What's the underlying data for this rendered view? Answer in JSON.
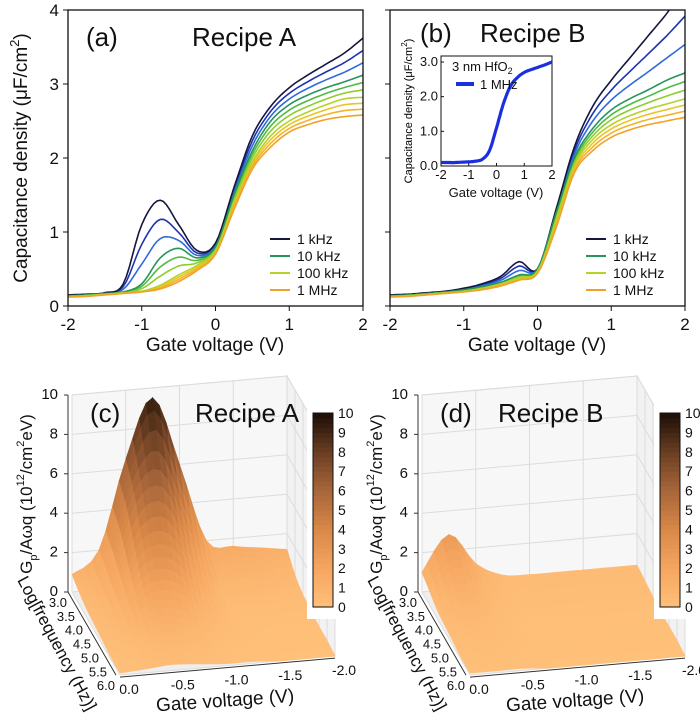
{
  "chart_data": [
    {
      "panel": "(a)",
      "title": "Recipe A",
      "type": "line",
      "xlabel": "Gate voltage (V)",
      "ylabel_parts": [
        "Capacitance density (μF/cm",
        "2",
        ")"
      ],
      "xlim": [
        -2,
        2
      ],
      "ylim": [
        0,
        4
      ],
      "xticks": [
        "-2",
        "-1",
        "0",
        "1",
        "2"
      ],
      "yticks": [
        "0",
        "1",
        "2",
        "3",
        "4"
      ],
      "legend_position": "bottom-right",
      "x": [
        -2,
        -1.75,
        -1.5,
        -1.25,
        -1,
        -0.75,
        -0.5,
        -0.25,
        0,
        0.25,
        0.5,
        0.75,
        1,
        1.25,
        1.5,
        1.75,
        2
      ],
      "series": [
        {
          "name": "1 kHz",
          "color": "#15163d",
          "values": [
            0.15,
            0.16,
            0.18,
            0.3,
            1.1,
            1.43,
            1.1,
            0.75,
            0.85,
            1.6,
            2.3,
            2.7,
            2.95,
            3.12,
            3.27,
            3.42,
            3.62
          ]
        },
        {
          "name": "10 kHz",
          "color": "#27955a",
          "values": [
            0.14,
            0.15,
            0.17,
            0.19,
            0.3,
            0.65,
            0.78,
            0.65,
            0.8,
            1.5,
            2.1,
            2.5,
            2.72,
            2.85,
            2.95,
            3.03,
            3.12
          ]
        },
        {
          "name": "100 kHz",
          "color": "#b5d22a",
          "values": [
            0.13,
            0.14,
            0.16,
            0.18,
            0.2,
            0.28,
            0.42,
            0.55,
            0.75,
            1.4,
            1.95,
            2.3,
            2.5,
            2.62,
            2.72,
            2.8,
            2.82
          ]
        },
        {
          "name": "1 MHz",
          "color": "#f2a126",
          "values": [
            0.12,
            0.13,
            0.15,
            0.17,
            0.19,
            0.23,
            0.33,
            0.48,
            0.7,
            1.3,
            1.85,
            2.15,
            2.35,
            2.45,
            2.52,
            2.56,
            2.58
          ]
        }
      ],
      "intermediate_colors": [
        [
          "#1d33b0",
          "#2f6bdc"
        ],
        [
          "#4fbb45",
          "#8fcd2e"
        ],
        [
          "#e8c62a",
          "#f4b22a"
        ]
      ]
    },
    {
      "panel": "(b)",
      "title": "Recipe B",
      "type": "line",
      "xlabel": "Gate voltage (V)",
      "xlim": [
        -2,
        2
      ],
      "ylim": [
        0,
        4
      ],
      "xticks": [
        "-2",
        "-1",
        "0",
        "1",
        "2"
      ],
      "legend_position": "bottom-right",
      "x": [
        -2,
        -1.75,
        -1.5,
        -1.25,
        -1,
        -0.75,
        -0.5,
        -0.25,
        0,
        0.25,
        0.5,
        0.75,
        1,
        1.25,
        1.5,
        1.75,
        2
      ],
      "series": [
        {
          "name": "1 kHz",
          "color": "#15163d",
          "values": [
            0.15,
            0.16,
            0.18,
            0.2,
            0.24,
            0.3,
            0.4,
            0.6,
            0.5,
            1.3,
            2.15,
            2.7,
            3.05,
            3.35,
            3.65,
            3.95,
            4.3
          ]
        },
        {
          "name": "10 kHz",
          "color": "#27955a",
          "values": [
            0.14,
            0.15,
            0.17,
            0.19,
            0.22,
            0.26,
            0.32,
            0.42,
            0.5,
            1.25,
            2.0,
            2.4,
            2.65,
            2.8,
            2.92,
            3.05,
            3.15
          ]
        },
        {
          "name": "100 kHz",
          "color": "#b5d22a",
          "values": [
            0.13,
            0.14,
            0.16,
            0.18,
            0.2,
            0.24,
            0.3,
            0.38,
            0.47,
            1.15,
            1.9,
            2.25,
            2.45,
            2.57,
            2.66,
            2.73,
            2.8
          ]
        },
        {
          "name": "1 MHz",
          "color": "#f2a126",
          "values": [
            0.12,
            0.13,
            0.15,
            0.17,
            0.19,
            0.22,
            0.27,
            0.35,
            0.44,
            1.05,
            1.8,
            2.1,
            2.28,
            2.38,
            2.45,
            2.5,
            2.55
          ]
        }
      ],
      "intermediate_colors": [
        [
          "#1d33b0",
          "#2f6bdc"
        ],
        [
          "#4fbb45",
          "#8fcd2e"
        ],
        [
          "#e8c62a",
          "#f4b22a"
        ]
      ],
      "inset": {
        "type": "line",
        "annotation_parts": [
          "3 nm HfO",
          "2"
        ],
        "xlabel": "Gate voltage (V)",
        "ylabel_parts": [
          "Capacitance density (μF/cm",
          "2",
          ")"
        ],
        "xlim": [
          -2,
          2
        ],
        "ylim": [
          0,
          3
        ],
        "xticks": [
          "-2",
          "-1",
          "0",
          "1",
          "2"
        ],
        "yticks": [
          "0.0",
          "1.0",
          "2.0",
          "3.0"
        ],
        "x": [
          -2,
          -1.75,
          -1.5,
          -1.25,
          -1,
          -0.75,
          -0.5,
          -0.25,
          0,
          0.25,
          0.5,
          0.75,
          1,
          1.25,
          1.5,
          1.75,
          2
        ],
        "series": [
          {
            "name": "1 MHz",
            "color": "#1a2fe0",
            "values": [
              0.1,
              0.1,
              0.1,
              0.11,
              0.12,
              0.14,
              0.2,
              0.45,
              1.1,
              1.8,
              2.3,
              2.55,
              2.7,
              2.78,
              2.85,
              2.92,
              3.0
            ]
          }
        ]
      }
    },
    {
      "panel": "(c)",
      "title": "Recipe A",
      "type": "surface",
      "zlabel_parts": [
        "G",
        "p",
        "/Aωq (10",
        "12",
        "/cm",
        "2",
        "eV)"
      ],
      "xlabel": "Gate voltage (V)",
      "ylabel": "Log[frequency (Hz)]",
      "zlim": [
        0,
        10
      ],
      "zticks": [
        "0",
        "2",
        "4",
        "6",
        "8",
        "10"
      ],
      "xticks": [
        "0.0",
        "-0.5",
        "-1.0",
        "-1.5",
        "-2.0"
      ],
      "yticks": [
        "3.0",
        "3.5",
        "4.0",
        "4.5",
        "5.0",
        "5.5",
        "6.0"
      ],
      "colorbar_ticks": [
        "0",
        "1",
        "2",
        "3",
        "4",
        "5",
        "6",
        "7",
        "8",
        "9",
        "10"
      ],
      "colormap": [
        "#ffc07a",
        "#f5a660",
        "#d98848",
        "#a8663a",
        "#6a3e22",
        "#1c0e06"
      ],
      "gate_voltage": [
        0,
        -0.25,
        -0.5,
        -0.75,
        -1,
        -1.25,
        -1.5,
        -1.75,
        -2
      ],
      "log_frequency": [
        3,
        3.5,
        4,
        4.5,
        5,
        5.5,
        6
      ],
      "z": [
        [
          0.9,
          2.0,
          6.5,
          9.5,
          6.0,
          2.0,
          1.6,
          1.4,
          1.2
        ],
        [
          0.6,
          1.6,
          5.5,
          6.5,
          3.5,
          1.2,
          1.0,
          0.8,
          0.6
        ],
        [
          0.4,
          1.2,
          3.8,
          4.0,
          2.0,
          0.6,
          0.5,
          0.4,
          0.3
        ],
        [
          0.3,
          0.9,
          2.3,
          2.2,
          1.0,
          0.3,
          0.2,
          0.2,
          0.2
        ],
        [
          0.2,
          0.6,
          1.3,
          1.1,
          0.5,
          0.2,
          0.1,
          0.1,
          0.1
        ],
        [
          0.1,
          0.3,
          0.6,
          0.5,
          0.2,
          0.1,
          0.1,
          0.1,
          0.1
        ],
        [
          0.1,
          0.2,
          0.3,
          0.2,
          0.1,
          0.1,
          0.0,
          0.0,
          0.0
        ]
      ]
    },
    {
      "panel": "(d)",
      "title": "Recipe B",
      "type": "surface",
      "zlabel_parts": [
        "G",
        "p",
        "/Aωq (10",
        "12",
        "/cm",
        "2",
        "eV)"
      ],
      "xlabel": "Gate voltage (V)",
      "ylabel": "Log[frequency (Hz)]",
      "zlim": [
        0,
        10
      ],
      "zticks": [
        "0",
        "2",
        "4",
        "6",
        "8",
        "10"
      ],
      "xticks": [
        "0.0",
        "-0.5",
        "-1.0",
        "-1.5",
        "-2.0"
      ],
      "yticks": [
        "3.0",
        "3.5",
        "4.0",
        "4.5",
        "5.0",
        "5.5",
        "6.0"
      ],
      "colorbar_ticks": [
        "0",
        "1",
        "2",
        "3",
        "4",
        "5",
        "6",
        "7",
        "8",
        "9",
        "10"
      ],
      "colormap": [
        "#ffc07a",
        "#f5a660",
        "#d98848",
        "#a8663a",
        "#6a3e22",
        "#1c0e06"
      ],
      "gate_voltage": [
        0,
        -0.25,
        -0.5,
        -0.75,
        -1,
        -1.25,
        -1.5,
        -1.75,
        -2
      ],
      "log_frequency": [
        3,
        3.5,
        4,
        4.5,
        5,
        5.5,
        6
      ],
      "z": [
        [
          1.0,
          2.8,
          1.2,
          0.5,
          0.4,
          0.4,
          0.4,
          0.4,
          0.4
        ],
        [
          0.7,
          1.8,
          0.8,
          0.3,
          0.3,
          0.3,
          0.3,
          0.3,
          0.3
        ],
        [
          0.4,
          1.0,
          0.5,
          0.2,
          0.2,
          0.2,
          0.2,
          0.2,
          0.2
        ],
        [
          0.3,
          0.6,
          0.3,
          0.1,
          0.1,
          0.1,
          0.1,
          0.1,
          0.1
        ],
        [
          0.2,
          0.3,
          0.2,
          0.1,
          0.1,
          0.1,
          0.1,
          0.1,
          0.1
        ],
        [
          0.1,
          0.2,
          0.1,
          0.1,
          0.1,
          0.1,
          0.1,
          0.1,
          0.1
        ],
        [
          0.1,
          0.1,
          0.1,
          0.0,
          0.0,
          0.0,
          0.0,
          0.0,
          0.0
        ]
      ]
    }
  ]
}
